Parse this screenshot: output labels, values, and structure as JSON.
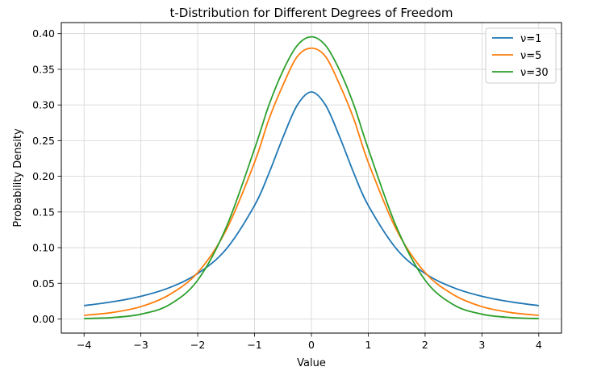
{
  "chart_data": {
    "type": "line",
    "title": "t-Distribution for Different Degrees of Freedom",
    "xlabel": "Value",
    "ylabel": "Probability Density",
    "xlim": [
      -4.4,
      4.4
    ],
    "ylim": [
      -0.0198,
      0.4155
    ],
    "grid": true,
    "legend_position": "top-right",
    "x_ticks": [
      -4,
      -3,
      -2,
      -1,
      0,
      1,
      2,
      3,
      4
    ],
    "x_tick_labels": [
      "−4",
      "−3",
      "−2",
      "−1",
      "0",
      "1",
      "2",
      "3",
      "4"
    ],
    "y_ticks": [
      0.0,
      0.05,
      0.1,
      0.15,
      0.2,
      0.25,
      0.3,
      0.35,
      0.4
    ],
    "y_tick_labels": [
      "0.00",
      "0.05",
      "0.10",
      "0.15",
      "0.20",
      "0.25",
      "0.30",
      "0.35",
      "0.40"
    ],
    "x": [
      -4.0,
      -3.5,
      -3.0,
      -2.5,
      -2.0,
      -1.5,
      -1.0,
      -0.75,
      -0.5,
      -0.25,
      0.0,
      0.25,
      0.5,
      0.75,
      1.0,
      1.5,
      2.0,
      2.5,
      3.0,
      3.5,
      4.0
    ],
    "series": [
      {
        "name": "ν=1",
        "color": "#1f77b4",
        "values": [
          0.0187,
          0.0241,
          0.0318,
          0.0439,
          0.0637,
          0.0979,
          0.1592,
          0.2037,
          0.2546,
          0.2996,
          0.3183,
          0.2996,
          0.2546,
          0.2037,
          0.1592,
          0.0979,
          0.0637,
          0.0439,
          0.0318,
          0.0241,
          0.0187
        ]
      },
      {
        "name": "ν=5",
        "color": "#ff7f0e",
        "values": [
          0.0051,
          0.0091,
          0.0173,
          0.034,
          0.0651,
          0.1245,
          0.2197,
          0.2795,
          0.3279,
          0.3678,
          0.3796,
          0.3678,
          0.3279,
          0.2795,
          0.2197,
          0.1245,
          0.0651,
          0.034,
          0.0173,
          0.0091,
          0.0051
        ]
      },
      {
        "name": "ν=30",
        "color": "#2ca02c",
        "values": [
          0.0006,
          0.002,
          0.0067,
          0.0199,
          0.0544,
          0.1283,
          0.2386,
          0.2993,
          0.348,
          0.3833,
          0.3956,
          0.3833,
          0.348,
          0.2993,
          0.2386,
          0.1283,
          0.0544,
          0.0199,
          0.0067,
          0.002,
          0.0006
        ]
      }
    ]
  }
}
